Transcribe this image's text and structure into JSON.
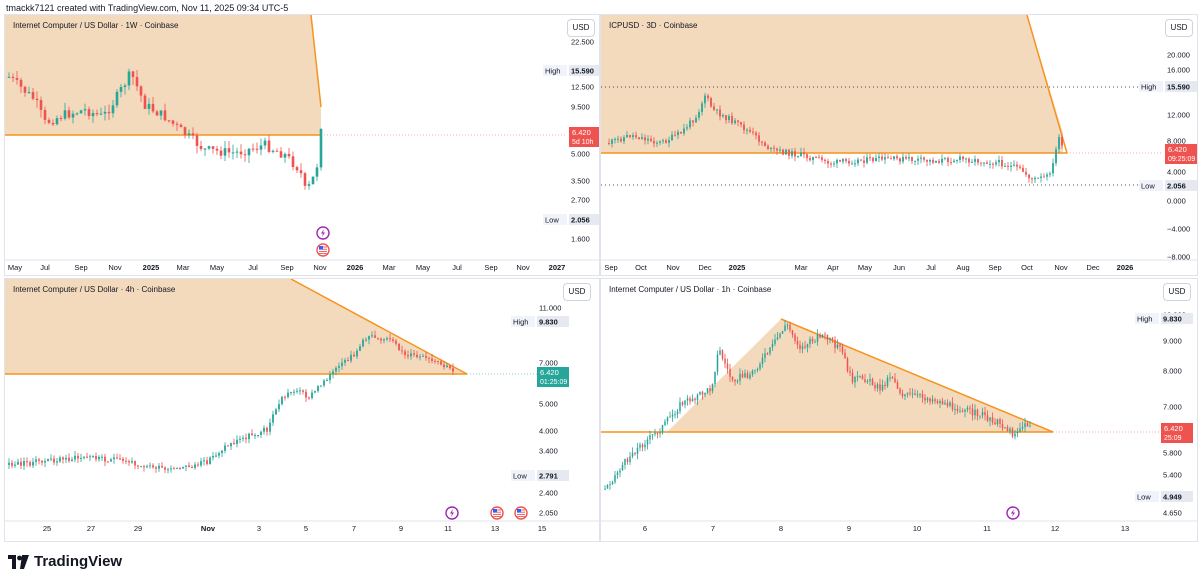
{
  "header": {
    "credit": "tmackk7121 created with TradingView.com, Nov 11, 2025 09:34 UTC-5"
  },
  "colors": {
    "up": "#26a69a",
    "down": "#ef5350",
    "trend": "#f7931e",
    "fill": "#f2d3b1",
    "current": "#ef5350",
    "current_green": "#26a69a"
  },
  "footer": {
    "logo_text": "TradingView"
  },
  "panels": [
    {
      "title": "Internet Computer / US Dollar · 1W · Coinbase",
      "currency": "USD",
      "y_labels": [
        "22.500",
        "15.590",
        "12.500",
        "9.500",
        "6.420",
        "5.000",
        "3.500",
        "2.700",
        "2.056",
        "1.600"
      ],
      "high_label": "High",
      "high_value": "15.590",
      "low_label": "Low",
      "low_value": "2.056",
      "price": "6.420",
      "countdown": "5d 10h",
      "x_labels": [
        "May",
        "Jul",
        "Sep",
        "Nov",
        "2025",
        "Mar",
        "May",
        "Jul",
        "Sep",
        "Nov",
        "2026",
        "Mar",
        "May",
        "Jul",
        "Sep",
        "Nov",
        "2027"
      ],
      "events": [
        "lightning-icon",
        "us-flag-icon"
      ]
    },
    {
      "title": "ICPUSD · 3D · Coinbase",
      "currency": "USD",
      "y_labels": [
        "20.000",
        "16.000",
        "15.590",
        "12.000",
        "8.000",
        "6.420",
        "4.000",
        "2.056",
        "0.000",
        "−4.000",
        "−8.000"
      ],
      "high_label": "High",
      "high_value": "15.590",
      "low_label": "Low",
      "low_value": "2.056",
      "price": "6.420",
      "countdown": "09:25:09",
      "x_labels": [
        "Sep",
        "Oct",
        "Nov",
        "Dec",
        "2025",
        "Mar",
        "Apr",
        "May",
        "Jun",
        "Jul",
        "Aug",
        "Sep",
        "Oct",
        "Nov",
        "Dec",
        "2026"
      ]
    },
    {
      "title": "Internet Computer / US Dollar · 4h · Coinbase",
      "currency": "USD",
      "y_labels": [
        "11.000",
        "9.830",
        "7.000",
        "6.420",
        "5.000",
        "4.000",
        "3.400",
        "2.791",
        "2.400",
        "2.050"
      ],
      "high_label": "High",
      "high_value": "9.830",
      "low_label": "Low",
      "low_value": "2.791",
      "price": "6.420",
      "countdown": "01:25:09",
      "x_labels": [
        "25",
        "27",
        "29",
        "Nov",
        "3",
        "5",
        "7",
        "9",
        "11",
        "13",
        "15"
      ]
    },
    {
      "title": "Internet Computer / US Dollar · 1h · Coinbase",
      "currency": "USD",
      "y_labels": [
        "10.000",
        "9.830",
        "9.000",
        "8.000",
        "7.000",
        "6.420",
        "5.800",
        "5.400",
        "4.949",
        "4.650"
      ],
      "high_label": "High",
      "high_value": "9.830",
      "low_label": "Low",
      "low_value": "4.949",
      "price": "6.420",
      "countdown": "25:09",
      "x_labels": [
        "6",
        "7",
        "8",
        "9",
        "10",
        "11",
        "12",
        "13"
      ]
    }
  ]
}
